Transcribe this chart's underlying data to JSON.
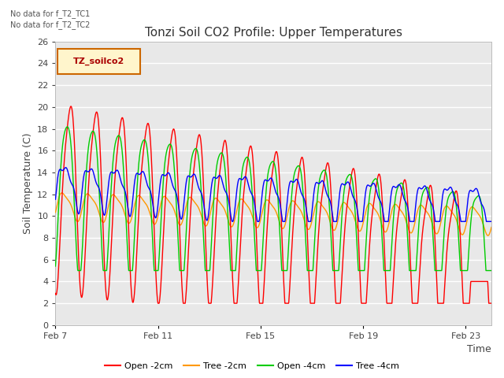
{
  "title": "Tonzi Soil CO2 Profile: Upper Temperatures",
  "ylabel": "Soil Temperature (C)",
  "xlabel": "Time",
  "no_data_labels": [
    "No data for f_T2_TC1",
    "No data for f_T2_TC2"
  ],
  "legend_box_label": "TZ_soilco2",
  "legend_entries": [
    "Open -2cm",
    "Tree -2cm",
    "Open -4cm",
    "Tree -4cm"
  ],
  "line_colors": [
    "#ff0000",
    "#ff9900",
    "#00cc00",
    "#0000ff"
  ],
  "ylim": [
    0,
    26
  ],
  "yticks": [
    0,
    2,
    4,
    6,
    8,
    10,
    12,
    14,
    16,
    18,
    20,
    22,
    24,
    26
  ],
  "xtick_labels": [
    "Feb 7",
    "Feb 11",
    "Feb 15",
    "Feb 19",
    "Feb 23"
  ],
  "xtick_positions": [
    0,
    4,
    8,
    12,
    16
  ],
  "xlim": [
    0,
    17
  ],
  "plot_bg_color": "#e8e8e8",
  "grid_color": "#ffffff",
  "title_fontsize": 11,
  "axis_label_fontsize": 9,
  "tick_fontsize": 8,
  "no_data_fontsize": 7,
  "legend_fontsize": 8
}
